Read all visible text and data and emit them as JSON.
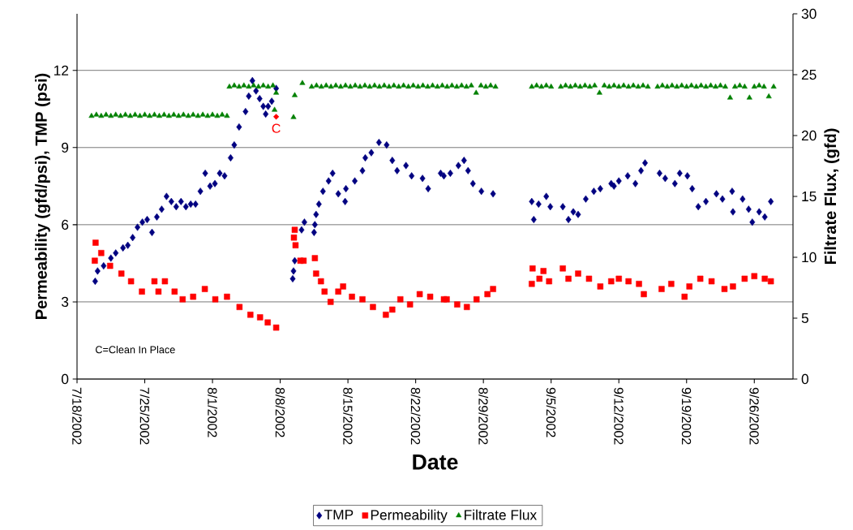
{
  "chart_data": {
    "type": "scatter",
    "xlabel": "Date",
    "ylabel": "Permeability (gfd/psi), TMP (psi)",
    "y2label": "Filtrate Flux, (gfd)",
    "xlim": [
      "2002-07-18",
      "2002-09-30"
    ],
    "xticks": [
      {
        "value": "2002-07-18",
        "label": "7/18/2002"
      },
      {
        "value": "2002-07-25",
        "label": "7/25/2002"
      },
      {
        "value": "2002-08-01",
        "label": "8/1/2002"
      },
      {
        "value": "2002-08-08",
        "label": "8/8/2002"
      },
      {
        "value": "2002-08-15",
        "label": "8/15/2002"
      },
      {
        "value": "2002-08-22",
        "label": "8/22/2002"
      },
      {
        "value": "2002-08-29",
        "label": "8/29/2002"
      },
      {
        "value": "2002-09-05",
        "label": "9/5/2002"
      },
      {
        "value": "2002-09-12",
        "label": "9/12/2002"
      },
      {
        "value": "2002-09-19",
        "label": "9/19/2002"
      },
      {
        "value": "2002-09-26",
        "label": "9/26/2002"
      }
    ],
    "ylim": [
      0,
      14.2
    ],
    "yticks": [
      0,
      3,
      6,
      9,
      12
    ],
    "y2lim": [
      0,
      30
    ],
    "y2ticks": [
      0,
      5,
      10,
      15,
      20,
      25,
      30
    ],
    "grid": "y",
    "legend": "bottom",
    "annotations": [
      {
        "text": "C",
        "x": "2002-08-07T14:00",
        "y": 10.2
      },
      "C=Clean In Place"
    ],
    "series": [
      {
        "name": "TMP",
        "color": "#000080",
        "marker": "diamond",
        "axis": "y",
        "x": [
          "2002-07-19T21:00",
          "2002-07-20T03:00",
          "2002-07-20T18:00",
          "2002-07-21T12:00",
          "2002-07-22T00:00",
          "2002-07-22T18:00",
          "2002-07-23T06:00",
          "2002-07-23T18:00",
          "2002-07-24T06:00",
          "2002-07-24T18:00",
          "2002-07-25T06:00",
          "2002-07-25T18:00",
          "2002-07-26T06:00",
          "2002-07-26T18:00",
          "2002-07-27T06:00",
          "2002-07-27T18:00",
          "2002-07-28T06:00",
          "2002-07-28T18:00",
          "2002-07-29T06:00",
          "2002-07-29T18:00",
          "2002-07-30T06:00",
          "2002-07-30T18:00",
          "2002-07-31T06:00",
          "2002-07-31T18:00",
          "2002-08-01T06:00",
          "2002-08-01T18:00",
          "2002-08-02T06:00",
          "2002-08-02T21:00",
          "2002-08-03T06:00",
          "2002-08-03T18:00",
          "2002-08-04T10:00",
          "2002-08-04T18:00",
          "2002-08-05T03:00",
          "2002-08-05T12:00",
          "2002-08-05T21:00",
          "2002-08-06T06:00",
          "2002-08-06T12:00",
          "2002-08-06T18:00",
          "2002-08-07T03:00",
          "2002-08-07T14:00",
          "2002-08-09T07:00",
          "2002-08-09T09:00",
          "2002-08-09T12:00",
          "2002-08-10T05:00",
          "2002-08-10T12:00",
          "2002-08-11T12:00",
          "2002-08-11T14:00",
          "2002-08-11T17:00",
          "2002-08-12T00:00",
          "2002-08-12T10:00",
          "2002-08-13T00:00",
          "2002-08-13T10:00",
          "2002-08-14T00:00",
          "2002-08-14T17:00",
          "2002-08-14T19:00",
          "2002-08-15T17:00",
          "2002-08-16T12:00",
          "2002-08-16T19:00",
          "2002-08-17T10:00",
          "2002-08-18T05:00",
          "2002-08-19T00:00",
          "2002-08-19T14:00",
          "2002-08-20T02:00",
          "2002-08-21T00:00",
          "2002-08-21T14:00",
          "2002-08-22T17:00",
          "2002-08-23T07:00",
          "2002-08-24T14:00",
          "2002-08-24T22:00",
          "2002-08-25T14:00",
          "2002-08-26T10:00",
          "2002-08-27T00:00",
          "2002-08-27T10:00",
          "2002-08-27T22:00",
          "2002-08-28T19:00",
          "2002-08-30T00:00",
          "2002-09-03T00:00",
          "2002-09-03T05:00",
          "2002-09-03T17:00",
          "2002-09-04T12:00",
          "2002-09-04T22:00",
          "2002-09-06T05:00",
          "2002-09-06T19:00",
          "2002-09-07T07:00",
          "2002-09-07T19:00",
          "2002-09-08T14:00",
          "2002-09-09T10:00",
          "2002-09-10T02:00",
          "2002-09-11T05:00",
          "2002-09-11T12:00",
          "2002-09-12T00:00",
          "2002-09-12T22:00",
          "2002-09-13T17:00",
          "2002-09-14T07:00",
          "2002-09-14T17:00",
          "2002-09-16T05:00",
          "2002-09-16T19:00",
          "2002-09-17T19:00",
          "2002-09-18T07:00",
          "2002-09-19T02:00",
          "2002-09-19T14:00",
          "2002-09-20T05:00",
          "2002-09-21T00:00",
          "2002-09-22T02:00",
          "2002-09-22T17:00",
          "2002-09-23T17:00",
          "2002-09-23T19:00",
          "2002-09-24T19:00",
          "2002-09-25T10:00",
          "2002-09-25T19:00",
          "2002-09-26T12:00",
          "2002-09-27T02:00",
          "2002-09-27T17:00"
        ],
        "values": [
          3.8,
          4.2,
          4.4,
          4.7,
          4.9,
          5.1,
          5.2,
          5.5,
          5.9,
          6.1,
          6.2,
          5.7,
          6.3,
          6.6,
          7.1,
          6.9,
          6.7,
          6.9,
          6.7,
          6.8,
          6.8,
          7.3,
          8.0,
          7.5,
          7.6,
          8.0,
          7.9,
          8.6,
          9.1,
          9.8,
          10.4,
          11.0,
          11.6,
          11.2,
          10.9,
          10.6,
          10.3,
          10.6,
          10.8,
          11.3,
          3.9,
          4.2,
          4.6,
          5.8,
          6.1,
          5.7,
          6.0,
          6.4,
          6.8,
          7.3,
          7.7,
          8.0,
          7.2,
          6.9,
          7.4,
          7.7,
          8.1,
          8.6,
          8.8,
          9.2,
          9.1,
          8.5,
          8.1,
          8.3,
          7.9,
          7.8,
          7.4,
          8.0,
          7.9,
          8.0,
          8.3,
          8.5,
          8.1,
          7.6,
          7.3,
          7.2,
          6.9,
          6.2,
          6.8,
          7.1,
          6.7,
          6.7,
          6.2,
          6.5,
          6.4,
          7.0,
          7.3,
          7.4,
          7.6,
          7.5,
          7.7,
          7.9,
          7.6,
          8.1,
          8.4,
          8.0,
          7.8,
          7.6,
          8.0,
          7.9,
          7.4,
          6.7,
          6.9,
          7.2,
          7.0,
          7.3,
          6.5,
          7.0,
          6.6,
          6.1,
          6.5,
          6.3,
          6.9
        ]
      },
      {
        "name": "Permeability",
        "color": "#ff0000",
        "marker": "square",
        "axis": "y",
        "x": [
          "2002-07-19T22:00",
          "2002-07-19T20:00",
          "2002-07-20T12:00",
          "2002-07-21T10:00",
          "2002-07-22T14:00",
          "2002-07-23T14:00",
          "2002-07-24T17:00",
          "2002-07-26T00:00",
          "2002-07-26T10:00",
          "2002-07-27T02:00",
          "2002-07-28T02:00",
          "2002-07-28T22:00",
          "2002-07-30T00:00",
          "2002-07-31T05:00",
          "2002-08-01T07:00",
          "2002-08-02T12:00",
          "2002-08-03T19:00",
          "2002-08-04T22:00",
          "2002-08-05T22:00",
          "2002-08-06T17:00",
          "2002-08-07T14:00",
          "2002-08-09T12:00",
          "2002-08-09T10:00",
          "2002-08-09T14:00",
          "2002-08-10T02:00",
          "2002-08-10T10:00",
          "2002-08-11T14:00",
          "2002-08-11T17:00",
          "2002-08-12T05:00",
          "2002-08-12T14:00",
          "2002-08-13T05:00",
          "2002-08-14T00:00",
          "2002-08-14T12:00",
          "2002-08-15T10:00",
          "2002-08-16T12:00",
          "2002-08-17T14:00",
          "2002-08-18T22:00",
          "2002-08-19T14:00",
          "2002-08-20T10:00",
          "2002-08-21T10:00",
          "2002-08-22T10:00",
          "2002-08-23T12:00",
          "2002-08-24T22:00",
          "2002-08-25T05:00",
          "2002-08-26T07:00",
          "2002-08-27T07:00",
          "2002-08-28T07:00",
          "2002-08-29T10:00",
          "2002-08-30T00:00",
          "2002-09-03T02:00",
          "2002-09-03T00:00",
          "2002-09-03T19:00",
          "2002-09-04T05:00",
          "2002-09-04T19:00",
          "2002-09-06T05:00",
          "2002-09-06T19:00",
          "2002-09-07T19:00",
          "2002-09-08T22:00",
          "2002-09-10T02:00",
          "2002-09-11T05:00",
          "2002-09-12T00:00",
          "2002-09-13T00:00",
          "2002-09-14T02:00",
          "2002-09-14T14:00",
          "2002-09-16T10:00",
          "2002-09-17T10:00",
          "2002-09-18T19:00",
          "2002-09-19T07:00",
          "2002-09-20T10:00",
          "2002-09-21T14:00",
          "2002-09-22T22:00",
          "2002-09-23T19:00",
          "2002-09-25T00:00",
          "2002-09-26T00:00",
          "2002-09-27T02:00",
          "2002-09-27T17:00"
        ],
        "values": [
          5.3,
          4.6,
          4.9,
          4.4,
          4.1,
          3.8,
          3.4,
          3.8,
          3.4,
          3.8,
          3.4,
          3.1,
          3.2,
          3.5,
          3.1,
          3.2,
          2.8,
          2.5,
          2.4,
          2.2,
          2.0,
          5.8,
          5.5,
          5.2,
          4.6,
          4.6,
          4.7,
          4.1,
          3.8,
          3.4,
          3.0,
          3.4,
          3.6,
          3.2,
          3.1,
          2.8,
          2.5,
          2.7,
          3.1,
          2.9,
          3.3,
          3.2,
          3.1,
          3.1,
          2.9,
          2.8,
          3.1,
          3.3,
          3.5,
          4.3,
          3.7,
          3.9,
          4.2,
          3.8,
          4.3,
          3.9,
          4.1,
          3.9,
          3.6,
          3.8,
          3.9,
          3.8,
          3.7,
          3.3,
          3.5,
          3.7,
          3.2,
          3.6,
          3.9,
          3.8,
          3.5,
          3.6,
          3.9,
          4.0,
          3.9,
          3.8
        ]
      },
      {
        "name": "Filtrate Flux",
        "color": "#008000",
        "marker": "triangle",
        "axis": "y2",
        "x": [
          "2002-07-19T12:00",
          "2002-07-20",
          "2002-07-20T12:00",
          "2002-07-21",
          "2002-07-21T12:00",
          "2002-07-22",
          "2002-07-22T12:00",
          "2002-07-23",
          "2002-07-23T12:00",
          "2002-07-24",
          "2002-07-24T12:00",
          "2002-07-25",
          "2002-07-25T12:00",
          "2002-07-26",
          "2002-07-26T12:00",
          "2002-07-27",
          "2002-07-27T12:00",
          "2002-07-28",
          "2002-07-28T12:00",
          "2002-07-29",
          "2002-07-29T12:00",
          "2002-07-30",
          "2002-07-30T12:00",
          "2002-07-31",
          "2002-07-31T12:00",
          "2002-08-01",
          "2002-08-01T12:00",
          "2002-08-02",
          "2002-08-02T12:00",
          "2002-08-02T18:00",
          "2002-08-03T06:00",
          "2002-08-03T18:00",
          "2002-08-04T06:00",
          "2002-08-04T18:00",
          "2002-08-05T06:00",
          "2002-08-05T18:00",
          "2002-08-06T06:00",
          "2002-08-06T18:00",
          "2002-08-07T06:00",
          "2002-08-07T10:00",
          "2002-08-07T14:00",
          "2002-08-09T09:00",
          "2002-08-09T12:00",
          "2002-08-10T07:00",
          "2002-08-11T06:00",
          "2002-08-11T18:00",
          "2002-08-12T06:00",
          "2002-08-12T18:00",
          "2002-08-13T06:00",
          "2002-08-13T18:00",
          "2002-08-14T06:00",
          "2002-08-14T18:00",
          "2002-08-15T06:00",
          "2002-08-15T18:00",
          "2002-08-16T06:00",
          "2002-08-16T18:00",
          "2002-08-17T06:00",
          "2002-08-17T18:00",
          "2002-08-18T06:00",
          "2002-08-18T18:00",
          "2002-08-19T06:00",
          "2002-08-19T18:00",
          "2002-08-20T06:00",
          "2002-08-20T18:00",
          "2002-08-21T06:00",
          "2002-08-21T18:00",
          "2002-08-22T06:00",
          "2002-08-22T18:00",
          "2002-08-23T06:00",
          "2002-08-23T18:00",
          "2002-08-24T06:00",
          "2002-08-24T18:00",
          "2002-08-25T06:00",
          "2002-08-25T18:00",
          "2002-08-26T06:00",
          "2002-08-26T18:00",
          "2002-08-27T06:00",
          "2002-08-27T18:00",
          "2002-08-28T06:00",
          "2002-08-28T18:00",
          "2002-08-29T06:00",
          "2002-08-29T18:00",
          "2002-08-30T06:00",
          "2002-09-03",
          "2002-09-03T12:00",
          "2002-09-04",
          "2002-09-04T12:00",
          "2002-09-05",
          "2002-09-06",
          "2002-09-06T12:00",
          "2002-09-07",
          "2002-09-07T12:00",
          "2002-09-08",
          "2002-09-08T12:00",
          "2002-09-09",
          "2002-09-09T12:00",
          "2002-09-10",
          "2002-09-10T12:00",
          "2002-09-11",
          "2002-09-11T12:00",
          "2002-09-12",
          "2002-09-12T12:00",
          "2002-09-13",
          "2002-09-13T12:00",
          "2002-09-14",
          "2002-09-14T12:00",
          "2002-09-15",
          "2002-09-16",
          "2002-09-16T12:00",
          "2002-09-17",
          "2002-09-17T12:00",
          "2002-09-18",
          "2002-09-18T12:00",
          "2002-09-19",
          "2002-09-19T12:00",
          "2002-09-20",
          "2002-09-20T12:00",
          "2002-09-21",
          "2002-09-21T12:00",
          "2002-09-22",
          "2002-09-22T12:00",
          "2002-09-23",
          "2002-09-23T12:00",
          "2002-09-24",
          "2002-09-24T12:00",
          "2002-09-25",
          "2002-09-25T12:00",
          "2002-09-26",
          "2002-09-26T12:00",
          "2002-09-27",
          "2002-09-27T12:00",
          "2002-09-28"
        ],
        "values": [
          21.6,
          21.7,
          21.6,
          21.7,
          21.6,
          21.7,
          21.6,
          21.7,
          21.6,
          21.7,
          21.6,
          21.7,
          21.6,
          21.7,
          21.6,
          21.7,
          21.6,
          21.7,
          21.6,
          21.7,
          21.6,
          21.7,
          21.6,
          21.7,
          21.6,
          21.7,
          21.6,
          21.7,
          21.6,
          24.0,
          24.1,
          24.0,
          24.1,
          24.0,
          24.1,
          24.0,
          24.1,
          24.0,
          24.1,
          22.1,
          23.5,
          21.5,
          23.3,
          24.3,
          24.0,
          24.1,
          24.0,
          24.1,
          24.0,
          24.1,
          24.0,
          24.1,
          24.0,
          24.1,
          24.0,
          24.1,
          24.0,
          24.1,
          24.0,
          24.1,
          24.0,
          24.1,
          24.0,
          24.1,
          24.0,
          24.1,
          24.0,
          24.1,
          24.0,
          24.1,
          24.0,
          24.1,
          24.0,
          24.1,
          24.0,
          24.1,
          24.0,
          24.1,
          23.5,
          24.1,
          24.0,
          24.1,
          24.0,
          24.0,
          24.1,
          24.0,
          24.1,
          24.0,
          24.0,
          24.1,
          24.0,
          24.1,
          24.0,
          24.1,
          24.0,
          24.1,
          23.5,
          24.1,
          24.0,
          24.1,
          24.0,
          24.1,
          24.0,
          24.1,
          24.0,
          24.1,
          24.0,
          24.0,
          24.1,
          24.0,
          24.1,
          24.0,
          24.1,
          24.0,
          24.1,
          24.0,
          24.1,
          24.0,
          24.1,
          24.0,
          24.1,
          24.0,
          23.1,
          24.0,
          24.1,
          24.0,
          23.1,
          24.0,
          24.1,
          24.0,
          23.2,
          24.0
        ]
      }
    ]
  }
}
